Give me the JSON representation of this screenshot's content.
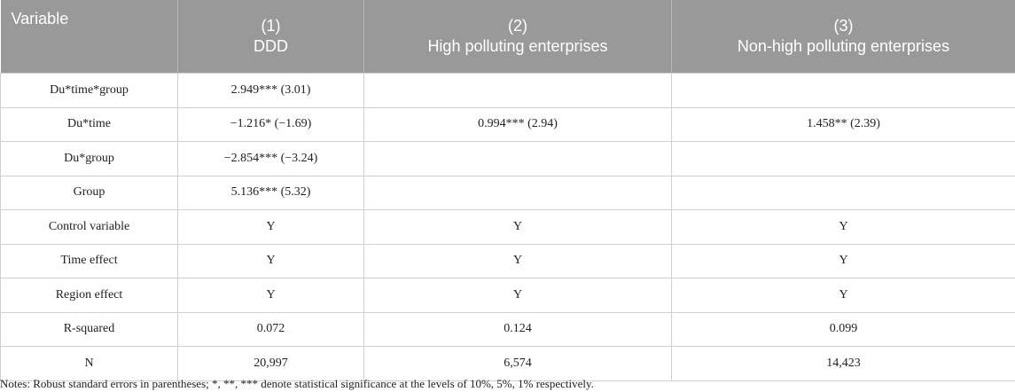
{
  "table": {
    "header": [
      {
        "label": "Variable"
      },
      {
        "number": "(1)",
        "label": "DDD"
      },
      {
        "number": "(2)",
        "label": "High polluting enterprises"
      },
      {
        "number": "(3)",
        "label": "Non-high polluting enterprises"
      }
    ],
    "rows": [
      [
        "Du*time*group",
        "2.949*** (3.01)",
        null,
        null
      ],
      [
        "Du*time",
        "−1.216* (−1.69)",
        "0.994*** (2.94)",
        "1.458** (2.39)"
      ],
      [
        "Du*group",
        "−2.854*** (−3.24)",
        null,
        null
      ],
      [
        "Group",
        "5.136*** (5.32)",
        null,
        null
      ],
      [
        "Control variable",
        "Y",
        "Y",
        "Y"
      ],
      [
        "Time effect",
        "Y",
        "Y",
        "Y"
      ],
      [
        "Region effect",
        "Y",
        "Y",
        "Y"
      ],
      [
        "R-squared",
        "0.072",
        "0.124",
        "0.099"
      ],
      [
        "N",
        "20,997",
        "6,574",
        "14,423"
      ]
    ]
  },
  "notes": "Notes: Robust standard errors in parentheses; *, **, *** denote statistical significance at the levels of 10%, 5%, 1% respectively."
}
